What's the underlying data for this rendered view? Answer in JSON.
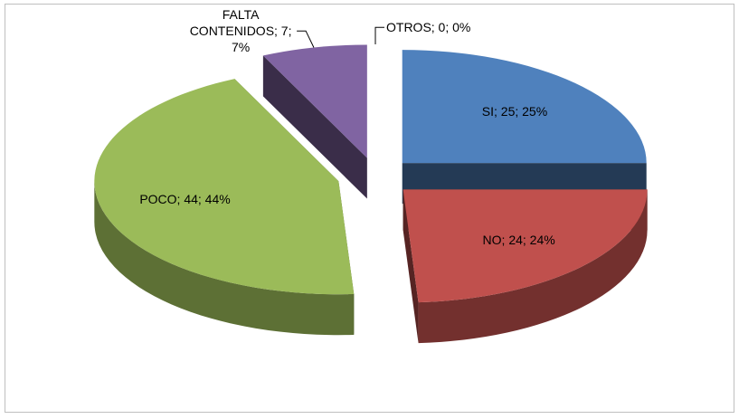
{
  "chart_data": {
    "type": "pie3d",
    "categories": [
      "SI",
      "NO",
      "POCO",
      "FALTA CONTENIDOS",
      "OTROS"
    ],
    "values": [
      25,
      24,
      44,
      7,
      0
    ],
    "value_labels": [
      "SI; 25; 25%",
      "NO; 24; 24%",
      "POCO; 44; 44%",
      "FALTA CONTENIDOS; 7; 7%",
      "OTROS; 0; 0%"
    ],
    "colors": [
      "#4f81bd",
      "#c0504d",
      "#9bbb59",
      "#8064a2",
      "#4bacc6"
    ],
    "exploded": true
  }
}
